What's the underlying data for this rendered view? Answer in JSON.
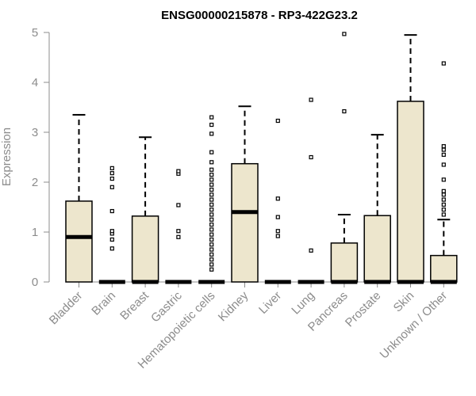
{
  "chart_data": {
    "type": "boxplot",
    "title": "ENSG00000215878 - RP3-422G23.2",
    "xlabel": "",
    "ylabel": "Expression",
    "ylim": [
      0,
      5
    ],
    "yticks": [
      0,
      1,
      2,
      3,
      4,
      5
    ],
    "colors": {
      "box_fill": "#ede6cd",
      "box_stroke": "#000000",
      "axis": "#8c8c8c"
    },
    "categories": [
      {
        "name": "Bladder",
        "min": 0,
        "q1": 0,
        "median": 0.9,
        "q3": 1.62,
        "max": 3.35,
        "outliers": []
      },
      {
        "name": "Brain",
        "min": 0,
        "q1": 0,
        "median": 0,
        "q3": 0,
        "max": 0,
        "outliers": [
          0.67,
          0.85,
          0.97,
          1.02,
          1.42,
          1.9,
          2.07,
          2.18,
          2.28
        ]
      },
      {
        "name": "Breast",
        "min": 0,
        "q1": 0,
        "median": 0,
        "q3": 1.32,
        "max": 2.9,
        "outliers": []
      },
      {
        "name": "Gastric",
        "min": 0,
        "q1": 0,
        "median": 0,
        "q3": 0,
        "max": 0,
        "outliers": [
          0.9,
          1.02,
          1.54,
          2.17,
          2.22
        ]
      },
      {
        "name": "Hematopoietic cells",
        "min": 0,
        "q1": 0,
        "median": 0,
        "q3": 0,
        "max": 0,
        "outliers": [
          0.25,
          0.35,
          0.45,
          0.55,
          0.65,
          0.75,
          0.85,
          0.95,
          1.05,
          1.15,
          1.25,
          1.35,
          1.45,
          1.55,
          1.65,
          1.75,
          1.85,
          1.95,
          2.05,
          2.15,
          2.25,
          2.4,
          2.6,
          2.97,
          3.15,
          3.3
        ]
      },
      {
        "name": "Kidney",
        "min": 0,
        "q1": 0,
        "median": 1.4,
        "q3": 2.37,
        "max": 3.52,
        "outliers": []
      },
      {
        "name": "Liver",
        "min": 0,
        "q1": 0,
        "median": 0,
        "q3": 0,
        "max": 0,
        "outliers": [
          0.92,
          1.02,
          1.3,
          1.67,
          3.23
        ]
      },
      {
        "name": "Lung",
        "min": 0,
        "q1": 0,
        "median": 0,
        "q3": 0,
        "max": 0,
        "outliers": [
          0.63,
          2.5,
          3.65
        ]
      },
      {
        "name": "Pancreas",
        "min": 0,
        "q1": 0,
        "median": 0,
        "q3": 0.78,
        "max": 1.35,
        "outliers": [
          3.42,
          4.97
        ]
      },
      {
        "name": "Prostate",
        "min": 0,
        "q1": 0,
        "median": 0,
        "q3": 1.33,
        "max": 2.95,
        "outliers": []
      },
      {
        "name": "Skin",
        "min": 0,
        "q1": 0,
        "median": 0,
        "q3": 3.62,
        "max": 4.95,
        "outliers": []
      },
      {
        "name": "Unknown / Other",
        "min": 0,
        "q1": 0,
        "median": 0,
        "q3": 0.53,
        "max": 1.25,
        "outliers": [
          1.35,
          1.45,
          1.55,
          1.65,
          1.75,
          1.82,
          2.05,
          2.35,
          2.55,
          2.65,
          2.72,
          4.38
        ]
      }
    ]
  }
}
